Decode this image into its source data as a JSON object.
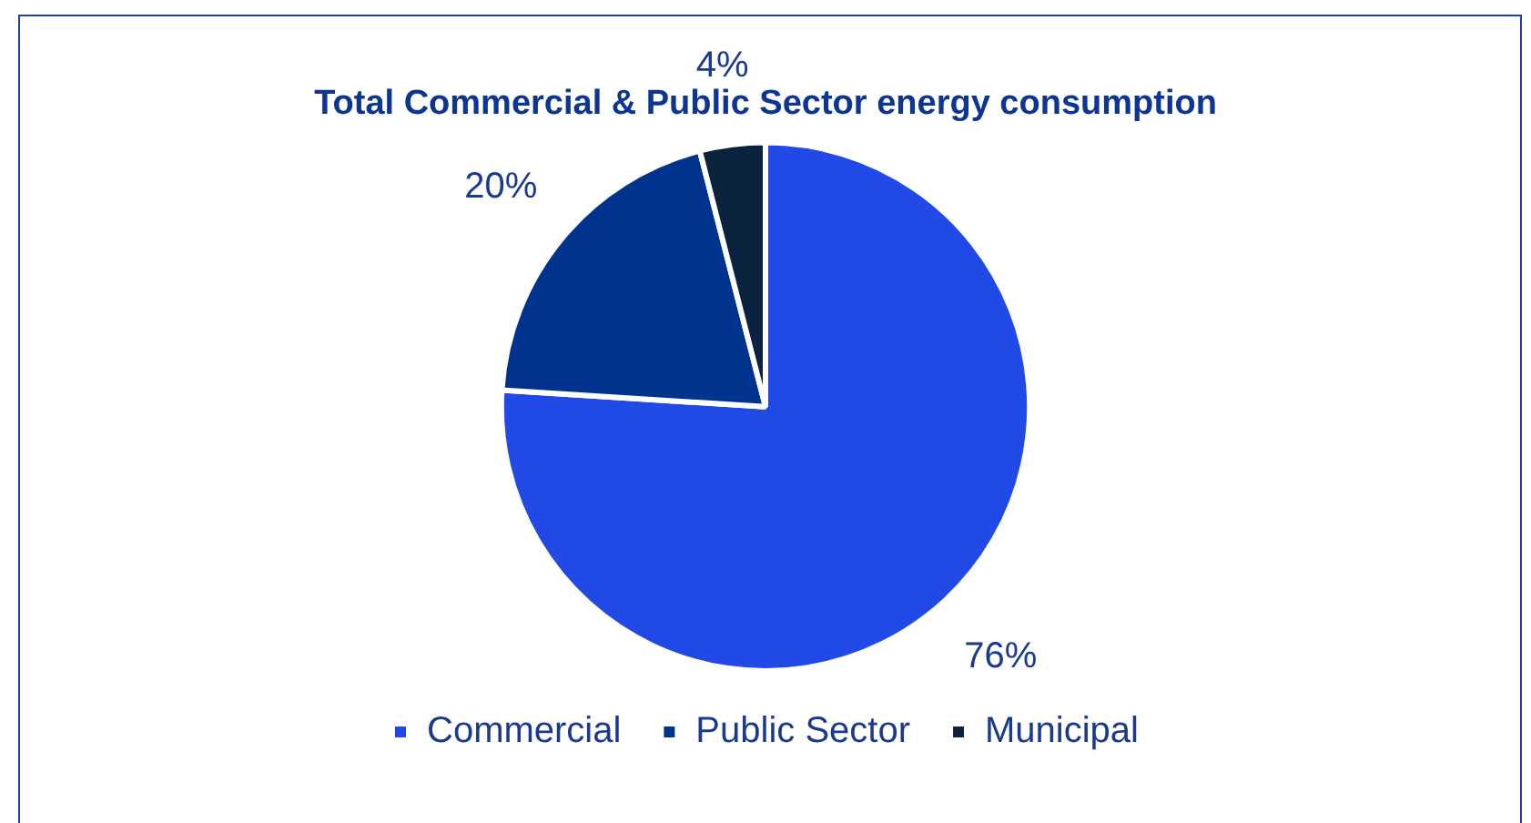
{
  "chart_data": {
    "type": "pie",
    "title": "Total Commercial & Public Sector energy consumption",
    "categories": [
      "Commercial",
      "Public Sector",
      "Municipal"
    ],
    "values": [
      76,
      20,
      4
    ],
    "colors": [
      "#2149e6",
      "#00338d",
      "#0c2340"
    ],
    "value_labels": [
      "76%",
      "20%",
      "4%"
    ],
    "legend": "bottom"
  }
}
